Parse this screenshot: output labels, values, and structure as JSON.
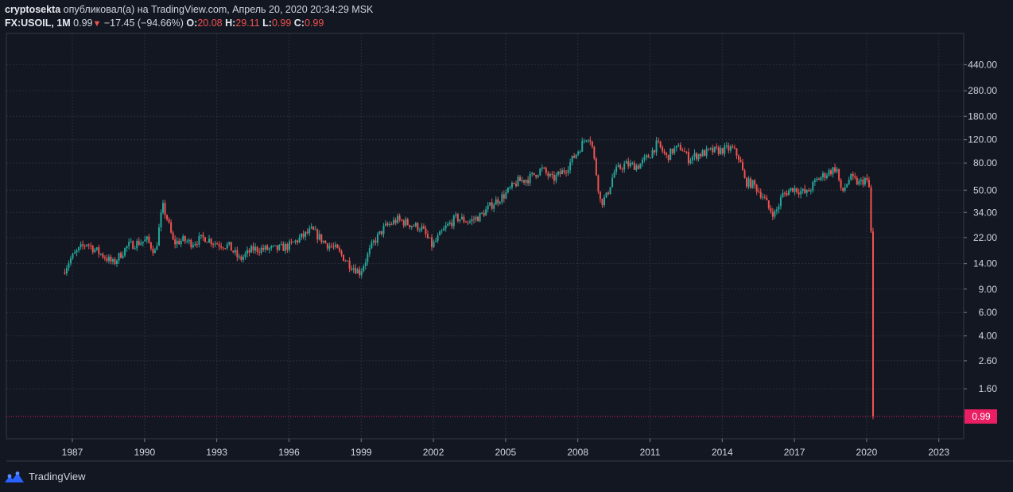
{
  "header": {
    "author": "cryptosekta",
    "published_text": "опубликовал(а) на TradingView.com, Апрель 20, 2020 20:34:29 MSK",
    "symbol": "FX:USOIL, 1M",
    "last": "0.99",
    "change": "−17.45 (−94.66%)",
    "o_label": "O:",
    "o_value": "20.08",
    "h_label": "H:",
    "h_value": "29.11",
    "l_label": "L:",
    "l_value": "0.99",
    "c_label": "C:",
    "c_value": "0.99"
  },
  "footer": {
    "brand": "TradingView"
  },
  "colors": {
    "background": "#131722",
    "up": "#26a69a",
    "down": "#ef5350",
    "grid": "#2a2e39",
    "price_tag": "#e91e63"
  },
  "chart_data": {
    "type": "candlestick",
    "y_scale": "log",
    "y_ticks": [
      "440.00",
      "280.00",
      "180.00",
      "120.00",
      "80.00",
      "50.00",
      "34.00",
      "22.00",
      "14.00",
      "9.00",
      "6.00",
      "4.00",
      "2.60",
      "1.60"
    ],
    "x_ticks": [
      "1987",
      "1990",
      "1993",
      "1996",
      "1999",
      "2002",
      "2005",
      "2008",
      "2011",
      "2014",
      "2017",
      "2020",
      "2023"
    ],
    "last_price_label": "0.99",
    "grid": true,
    "series": [
      {
        "x": 1986.6,
        "y": 12
      },
      {
        "x": 1986.9,
        "y": 15
      },
      {
        "x": 1987.3,
        "y": 18
      },
      {
        "x": 1987.6,
        "y": 20
      },
      {
        "x": 1987.9,
        "y": 18
      },
      {
        "x": 1988.3,
        "y": 16
      },
      {
        "x": 1988.7,
        "y": 14
      },
      {
        "x": 1988.95,
        "y": 16
      },
      {
        "x": 1989.3,
        "y": 19
      },
      {
        "x": 1989.7,
        "y": 20
      },
      {
        "x": 1990.1,
        "y": 21
      },
      {
        "x": 1990.45,
        "y": 17
      },
      {
        "x": 1990.75,
        "y": 38
      },
      {
        "x": 1990.95,
        "y": 30
      },
      {
        "x": 1991.2,
        "y": 20
      },
      {
        "x": 1991.6,
        "y": 21
      },
      {
        "x": 1991.95,
        "y": 20
      },
      {
        "x": 1992.5,
        "y": 22
      },
      {
        "x": 1992.95,
        "y": 20
      },
      {
        "x": 1993.5,
        "y": 19
      },
      {
        "x": 1993.95,
        "y": 15
      },
      {
        "x": 1994.5,
        "y": 18
      },
      {
        "x": 1995,
        "y": 18
      },
      {
        "x": 1995.5,
        "y": 18
      },
      {
        "x": 1996,
        "y": 19
      },
      {
        "x": 1996.5,
        "y": 22
      },
      {
        "x": 1996.95,
        "y": 25
      },
      {
        "x": 1997.5,
        "y": 20
      },
      {
        "x": 1997.95,
        "y": 18
      },
      {
        "x": 1998.5,
        "y": 14
      },
      {
        "x": 1998.95,
        "y": 12
      },
      {
        "x": 1999.5,
        "y": 20
      },
      {
        "x": 1999.95,
        "y": 26
      },
      {
        "x": 2000.5,
        "y": 30
      },
      {
        "x": 2000.95,
        "y": 28
      },
      {
        "x": 2001.5,
        "y": 26
      },
      {
        "x": 2001.95,
        "y": 19
      },
      {
        "x": 2002.5,
        "y": 26
      },
      {
        "x": 2002.95,
        "y": 31
      },
      {
        "x": 2003.5,
        "y": 29
      },
      {
        "x": 2003.95,
        "y": 32
      },
      {
        "x": 2004.5,
        "y": 40
      },
      {
        "x": 2004.95,
        "y": 46
      },
      {
        "x": 2005.5,
        "y": 58
      },
      {
        "x": 2005.95,
        "y": 61
      },
      {
        "x": 2006.5,
        "y": 72
      },
      {
        "x": 2006.95,
        "y": 60
      },
      {
        "x": 2007.5,
        "y": 72
      },
      {
        "x": 2007.95,
        "y": 95
      },
      {
        "x": 2008.4,
        "y": 130
      },
      {
        "x": 2008.55,
        "y": 120
      },
      {
        "x": 2008.75,
        "y": 70
      },
      {
        "x": 2008.95,
        "y": 40
      },
      {
        "x": 2009.2,
        "y": 45
      },
      {
        "x": 2009.5,
        "y": 68
      },
      {
        "x": 2009.95,
        "y": 78
      },
      {
        "x": 2010.5,
        "y": 76
      },
      {
        "x": 2010.95,
        "y": 90
      },
      {
        "x": 2011.3,
        "y": 112
      },
      {
        "x": 2011.7,
        "y": 88
      },
      {
        "x": 2011.95,
        "y": 100
      },
      {
        "x": 2012.3,
        "y": 105
      },
      {
        "x": 2012.6,
        "y": 86
      },
      {
        "x": 2012.95,
        "y": 92
      },
      {
        "x": 2013.5,
        "y": 98
      },
      {
        "x": 2013.95,
        "y": 100
      },
      {
        "x": 2014.4,
        "y": 103
      },
      {
        "x": 2014.7,
        "y": 88
      },
      {
        "x": 2014.95,
        "y": 58
      },
      {
        "x": 2015.3,
        "y": 55
      },
      {
        "x": 2015.7,
        "y": 45
      },
      {
        "x": 2015.95,
        "y": 36
      },
      {
        "x": 2016.2,
        "y": 33
      },
      {
        "x": 2016.5,
        "y": 46
      },
      {
        "x": 2016.95,
        "y": 52
      },
      {
        "x": 2017.5,
        "y": 47
      },
      {
        "x": 2017.95,
        "y": 60
      },
      {
        "x": 2018.4,
        "y": 68
      },
      {
        "x": 2018.75,
        "y": 74
      },
      {
        "x": 2018.95,
        "y": 47
      },
      {
        "x": 2019.3,
        "y": 62
      },
      {
        "x": 2019.7,
        "y": 56
      },
      {
        "x": 2019.95,
        "y": 61
      },
      {
        "x": 2020.1,
        "y": 52
      },
      {
        "x": 2020.2,
        "y": 21
      },
      {
        "x": 2020.3,
        "y": 0.99
      }
    ]
  }
}
